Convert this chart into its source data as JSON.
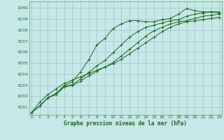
{
  "title": "Graphe pression niveau de la mer (hPa)",
  "bg_color": "#c6e8e8",
  "grid_color": "#a0c4c4",
  "line_color": "#1a6b1a",
  "spine_color": "#7aaa7a",
  "ylim": [
    1030.3,
    1040.6
  ],
  "xlim": [
    -0.3,
    23.3
  ],
  "yticks": [
    1031,
    1032,
    1033,
    1034,
    1035,
    1036,
    1037,
    1038,
    1039,
    1040
  ],
  "xticks": [
    0,
    1,
    2,
    3,
    4,
    5,
    6,
    7,
    8,
    9,
    10,
    11,
    12,
    13,
    14,
    15,
    16,
    17,
    18,
    19,
    20,
    21,
    22,
    23
  ],
  "series": [
    [
      1030.5,
      1031.1,
      1031.85,
      1032.25,
      1032.95,
      1033.3,
      1034.2,
      1035.3,
      1036.65,
      1037.25,
      1038.15,
      1038.55,
      1038.85,
      1038.85,
      1038.75,
      1038.75,
      1038.95,
      1039.05,
      1039.45,
      1039.95,
      1039.75,
      1039.65,
      1039.65,
      1039.55
    ],
    [
      1030.5,
      1031.1,
      1031.85,
      1032.15,
      1032.85,
      1033.05,
      1033.55,
      1034.15,
      1034.75,
      1035.25,
      1035.95,
      1036.65,
      1037.35,
      1037.85,
      1038.25,
      1038.45,
      1038.65,
      1038.85,
      1038.95,
      1039.25,
      1039.45,
      1039.55,
      1039.65,
      1039.65
    ],
    [
      1030.5,
      1031.1,
      1031.85,
      1032.15,
      1032.85,
      1032.95,
      1033.35,
      1033.85,
      1034.25,
      1034.65,
      1035.05,
      1035.65,
      1036.25,
      1036.85,
      1037.45,
      1037.95,
      1038.25,
      1038.55,
      1038.75,
      1038.85,
      1039.05,
      1039.25,
      1039.35,
      1039.45
    ],
    [
      1030.5,
      1031.45,
      1032.15,
      1032.65,
      1033.15,
      1033.45,
      1033.75,
      1034.05,
      1034.35,
      1034.65,
      1034.95,
      1035.35,
      1035.85,
      1036.35,
      1036.85,
      1037.35,
      1037.85,
      1038.25,
      1038.55,
      1038.75,
      1038.85,
      1038.95,
      1039.05,
      1039.15
    ]
  ]
}
